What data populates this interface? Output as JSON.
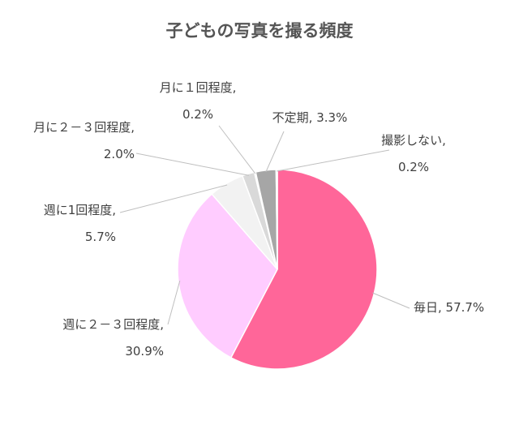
{
  "chart_data": {
    "type": "pie",
    "title": "子どもの写真を撮る頻度",
    "slices": [
      {
        "label_lines": [
          "毎日, 57.7%"
        ],
        "value": 57.7,
        "color": "#ff6699"
      },
      {
        "label_lines": [
          "週に２－３回程度,",
          "30.9%"
        ],
        "value": 30.9,
        "color": "#ffccff"
      },
      {
        "label_lines": [
          "週に1回程度,",
          "5.7%"
        ],
        "value": 5.7,
        "color": "#f2f2f2"
      },
      {
        "label_lines": [
          "月に２－３回程度,",
          "2.0%"
        ],
        "value": 2.0,
        "color": "#d9d9d9"
      },
      {
        "label_lines": [
          "月に１回程度,",
          "0.2%"
        ],
        "value": 0.2,
        "color": "#bfbfbf"
      },
      {
        "label_lines": [
          "不定期, 3.3%"
        ],
        "value": 3.3,
        "color": "#a6a6a6"
      },
      {
        "label_lines": [
          "撮影しない,",
          "0.2%"
        ],
        "value": 0.2,
        "color": "#7f7f7f"
      }
    ]
  }
}
